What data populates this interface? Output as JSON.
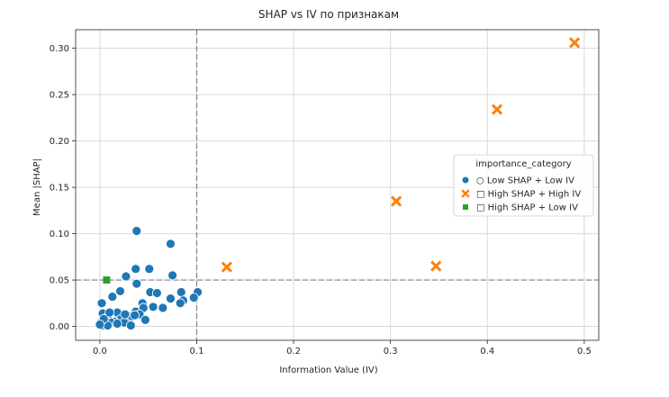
{
  "chart_data": {
    "type": "scatter",
    "title": "SHAP vs IV по признакам",
    "xlabel": "Information Value (IV)",
    "ylabel": "Mean |SHAP|",
    "xlim": [
      -0.025,
      0.515
    ],
    "ylim": [
      -0.015,
      0.32
    ],
    "x_ticks": [
      0.0,
      0.1,
      0.2,
      0.3,
      0.4,
      0.5
    ],
    "x_tick_labels": [
      "0.0",
      "0.1",
      "0.2",
      "0.3",
      "0.4",
      "0.5"
    ],
    "y_ticks": [
      0.0,
      0.05,
      0.1,
      0.15,
      0.2,
      0.25,
      0.3
    ],
    "y_tick_labels": [
      "0.00",
      "0.05",
      "0.10",
      "0.15",
      "0.20",
      "0.25",
      "0.30"
    ],
    "grid": true,
    "reference_lines": {
      "vertical_x": 0.1,
      "horizontal_y": 0.05,
      "style": "dashed",
      "color": "#7f7f7f"
    },
    "legend": {
      "title": "importance_category",
      "placement": "center-right",
      "entries": [
        {
          "label": "○ Low SHAP + Low IV",
          "marker": "circle",
          "color": "#1f77b4"
        },
        {
          "label": "□ High SHAP + High IV",
          "marker": "x",
          "color": "#ff7f0e"
        },
        {
          "label": "□ High SHAP + Low IV",
          "marker": "square",
          "color": "#2ca02c"
        }
      ]
    },
    "series": [
      {
        "name": "○ Low SHAP + Low IV",
        "marker": "circle",
        "color": "#1f77b4",
        "points": [
          [
            0.038,
            0.103
          ],
          [
            0.073,
            0.089
          ],
          [
            0.037,
            0.062
          ],
          [
            0.051,
            0.062
          ],
          [
            0.075,
            0.055
          ],
          [
            0.027,
            0.054
          ],
          [
            0.038,
            0.046
          ],
          [
            0.021,
            0.038
          ],
          [
            0.052,
            0.037
          ],
          [
            0.059,
            0.036
          ],
          [
            0.101,
            0.037
          ],
          [
            0.084,
            0.037
          ],
          [
            0.013,
            0.032
          ],
          [
            0.073,
            0.03
          ],
          [
            0.097,
            0.031
          ],
          [
            0.086,
            0.028
          ],
          [
            0.083,
            0.025
          ],
          [
            0.002,
            0.025
          ],
          [
            0.044,
            0.025
          ],
          [
            0.055,
            0.021
          ],
          [
            0.065,
            0.02
          ],
          [
            0.045,
            0.02
          ],
          [
            0.037,
            0.016
          ],
          [
            0.018,
            0.015
          ],
          [
            0.003,
            0.014
          ],
          [
            0.041,
            0.013
          ],
          [
            0.029,
            0.01
          ],
          [
            0.008,
            0.01
          ],
          [
            0.033,
            0.011
          ],
          [
            0.022,
            0.008
          ],
          [
            0.006,
            0.006
          ],
          [
            0.015,
            0.005
          ],
          [
            0.047,
            0.007
          ],
          [
            0.001,
            0.004
          ],
          [
            0.025,
            0.004
          ],
          [
            0.012,
            0.004
          ],
          [
            0.018,
            0.003
          ],
          [
            0.002,
            0.001
          ],
          [
            0.008,
            0.001
          ],
          [
            0.032,
            0.001
          ],
          [
            0.036,
            0.012
          ],
          [
            0.026,
            0.013
          ],
          [
            0.004,
            0.008
          ],
          [
            0.01,
            0.015
          ],
          [
            0.0,
            0.002
          ]
        ]
      },
      {
        "name": "□ High SHAP + High IV",
        "marker": "x",
        "color": "#ff7f0e",
        "points": [
          [
            0.49,
            0.306
          ],
          [
            0.41,
            0.234
          ],
          [
            0.306,
            0.135
          ],
          [
            0.131,
            0.064
          ],
          [
            0.347,
            0.065
          ]
        ]
      },
      {
        "name": "□ High SHAP + Low IV",
        "marker": "square",
        "color": "#2ca02c",
        "points": [
          [
            0.007,
            0.05
          ]
        ]
      }
    ]
  }
}
